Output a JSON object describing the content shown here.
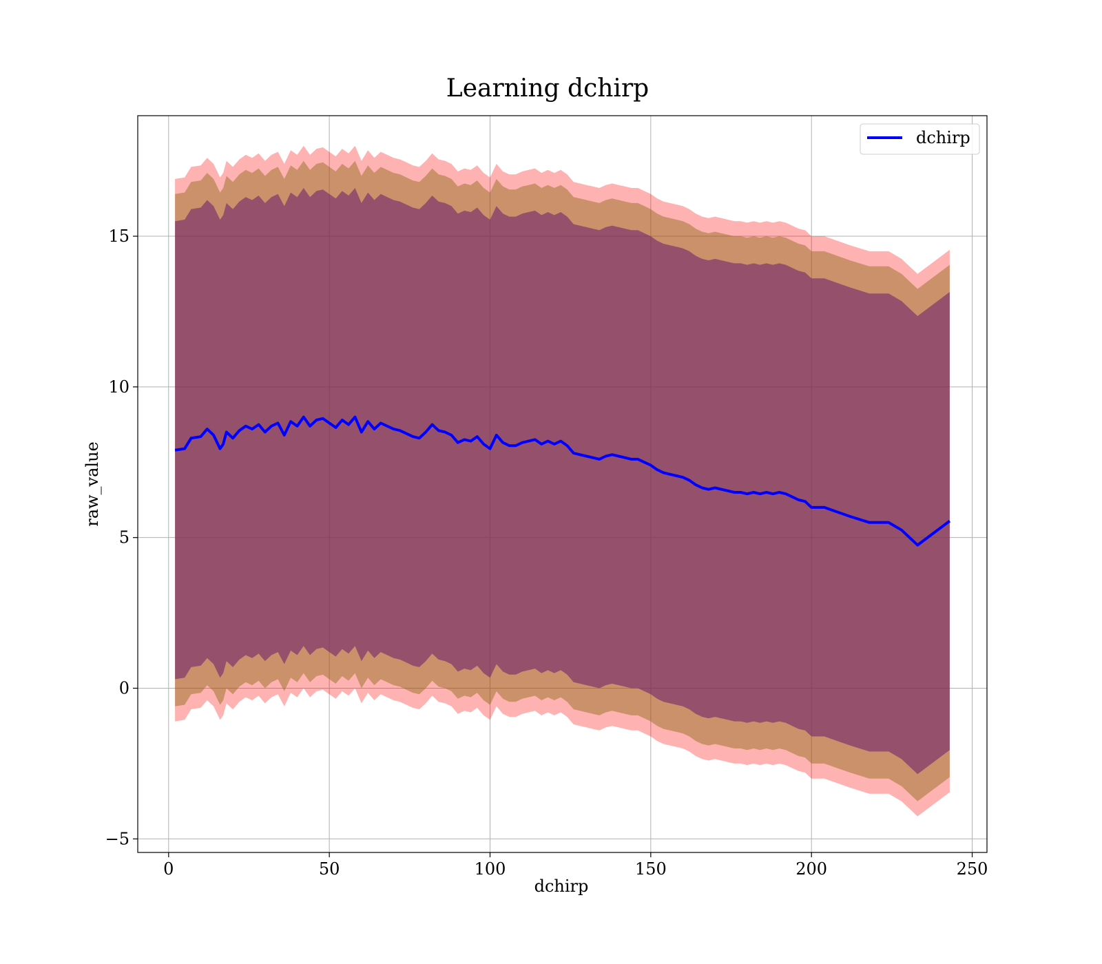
{
  "chart_data": {
    "type": "line",
    "title": "Learning dchirp",
    "xlabel": "dchirp",
    "ylabel": "raw_value",
    "xlim": [
      -9.6,
      254.6
    ],
    "ylim": [
      -5.45,
      19.0
    ],
    "xticks": [
      0,
      50,
      100,
      150,
      200,
      250
    ],
    "yticks": [
      -5,
      0,
      5,
      10,
      15
    ],
    "xtick_labels": [
      "0",
      "50",
      "100",
      "150",
      "200",
      "250"
    ],
    "ytick_labels": [
      "−5",
      "0",
      "5",
      "10",
      "15"
    ],
    "grid": true,
    "legend": {
      "position": "top-right",
      "entries": [
        "dchirp"
      ]
    },
    "colors": {
      "line": "#0000ff",
      "outer_band": "#ff0000",
      "middle_band": "#8b6914",
      "inner_band": "#6a1e6e",
      "grid": "#b0b0b0"
    },
    "series": [
      {
        "name": "dchirp",
        "x": [
          2,
          5,
          7,
          10,
          12,
          14,
          16,
          17,
          18,
          20,
          22,
          24,
          26,
          28,
          30,
          32,
          34,
          36,
          38,
          40,
          42,
          44,
          46,
          48,
          50,
          52,
          54,
          56,
          58,
          60,
          62,
          64,
          66,
          68,
          70,
          72,
          74,
          76,
          78,
          80,
          82,
          84,
          86,
          88,
          90,
          92,
          94,
          96,
          98,
          100,
          102,
          104,
          106,
          108,
          110,
          112,
          114,
          116,
          118,
          120,
          122,
          124,
          126,
          128,
          130,
          132,
          134,
          136,
          138,
          140,
          142,
          144,
          146,
          148,
          150,
          152,
          154,
          156,
          158,
          160,
          162,
          164,
          166,
          168,
          170,
          172,
          174,
          176,
          178,
          180,
          182,
          184,
          186,
          188,
          190,
          192,
          194,
          196,
          198,
          200,
          204,
          208,
          212,
          218,
          224,
          228,
          233,
          243
        ],
        "y": [
          7.9,
          7.95,
          8.3,
          8.35,
          8.6,
          8.4,
          7.95,
          8.1,
          8.5,
          8.3,
          8.55,
          8.7,
          8.6,
          8.75,
          8.5,
          8.7,
          8.8,
          8.4,
          8.85,
          8.7,
          9.0,
          8.7,
          8.9,
          8.95,
          8.8,
          8.65,
          8.9,
          8.75,
          9.0,
          8.5,
          8.85,
          8.6,
          8.8,
          8.7,
          8.6,
          8.55,
          8.45,
          8.35,
          8.3,
          8.5,
          8.75,
          8.55,
          8.5,
          8.4,
          8.15,
          8.25,
          8.2,
          8.35,
          8.1,
          7.95,
          8.4,
          8.15,
          8.05,
          8.05,
          8.15,
          8.2,
          8.25,
          8.1,
          8.2,
          8.1,
          8.2,
          8.05,
          7.8,
          7.75,
          7.7,
          7.65,
          7.6,
          7.7,
          7.75,
          7.7,
          7.65,
          7.6,
          7.6,
          7.5,
          7.4,
          7.25,
          7.15,
          7.1,
          7.05,
          7.0,
          6.9,
          6.75,
          6.65,
          6.6,
          6.65,
          6.6,
          6.55,
          6.5,
          6.5,
          6.45,
          6.5,
          6.45,
          6.5,
          6.45,
          6.5,
          6.45,
          6.35,
          6.25,
          6.2,
          6.0,
          6.0,
          5.85,
          5.7,
          5.5,
          5.5,
          5.25,
          4.75,
          5.55
        ]
      }
    ],
    "bands": [
      {
        "level": "outer",
        "half_width": 8.8,
        "tip_offset": 0.2
      },
      {
        "level": "middle",
        "half_width": 8.5,
        "tip_offset": 0.0
      },
      {
        "level": "inner",
        "half_width": 7.7,
        "tip_offset": -0.1
      }
    ]
  }
}
